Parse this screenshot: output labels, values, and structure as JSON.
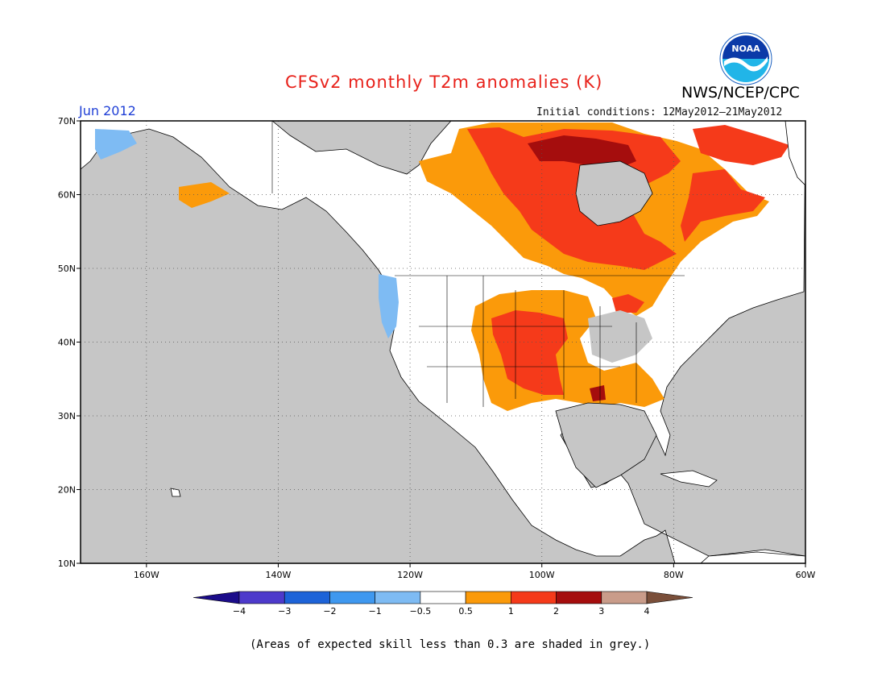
{
  "header": {
    "title": "CFSv2 monthly T2m anomalies (K)",
    "org": "NWS/NCEP/CPC",
    "logo_text": "NOAA",
    "month": "Jun 2012",
    "initial_conditions": "Initial conditions: 12May2012–21May2012"
  },
  "footnote": "(Areas of expected skill less than 0.3 are shaded in grey.)",
  "axes": {
    "lat_labels": [
      "70N",
      "60N",
      "50N",
      "40N",
      "30N",
      "20N",
      "10N"
    ],
    "lat_values": [
      70,
      60,
      50,
      40,
      30,
      20,
      10
    ],
    "lon_labels": [
      "160W",
      "140W",
      "120W",
      "100W",
      "80W",
      "60W"
    ],
    "lon_values": [
      -160,
      -140,
      -120,
      -100,
      -80,
      -60
    ],
    "lon_range": [
      -170,
      -60
    ],
    "lat_range": [
      10,
      70
    ],
    "grid": "dotted"
  },
  "colorbar": {
    "labels": [
      "−4",
      "−3",
      "−2",
      "−1",
      "−0.5",
      "0.5",
      "1",
      "2",
      "3",
      "4"
    ],
    "colors": [
      "#1b0c8a",
      "#4d3acb",
      "#1d63d8",
      "#3f98ef",
      "#7ebbf3",
      "#ffffff",
      "#fb9a0a",
      "#f53a1a",
      "#a50d0d",
      "#c99c8a",
      "#7a4f3a"
    ]
  },
  "colors": {
    "ocean_low_skill": "#c6c6c6",
    "near_zero": "#ffffff",
    "warm_05_1": "#fb9a0a",
    "warm_1_2": "#f53a1a",
    "warm_2_3": "#a50d0d",
    "cool_05_1": "#7ebbf3"
  }
}
